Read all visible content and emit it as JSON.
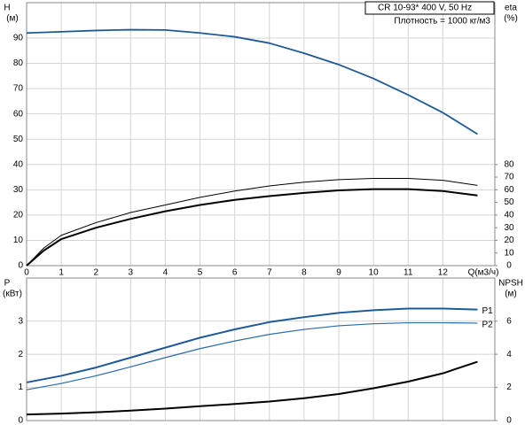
{
  "chart_data": [
    {
      "type": "line",
      "annotations": [
        "CR 10-9",
        "3* 400 V, 50 Hz",
        "Плотность = 1000 кг/м3"
      ],
      "xlabel": "Q(м3/ч)",
      "ylabel": "H",
      "yunit": "(м)",
      "y2label": "eta",
      "y2unit": "(%)",
      "xlim": [
        0,
        13.5
      ],
      "xticks": [
        0,
        1,
        2,
        3,
        4,
        5,
        6,
        7,
        8,
        9,
        10,
        11,
        12
      ],
      "ylim": [
        0,
        104
      ],
      "yticks": [
        0,
        10,
        20,
        30,
        40,
        50,
        60,
        70,
        80,
        90
      ],
      "y2lim": [
        0,
        208
      ],
      "y2ticks": [
        0,
        10,
        20,
        30,
        40,
        50,
        60,
        70,
        80
      ],
      "grid": true,
      "series": [
        {
          "color": "#1f5a96",
          "width": 1.8,
          "x": [
            0,
            1,
            2,
            3,
            4,
            5,
            6,
            7,
            8,
            9,
            10,
            11,
            12,
            13
          ],
          "values": [
            92,
            92.5,
            93,
            93.3,
            93.2,
            92,
            90.5,
            88,
            84,
            79.5,
            74,
            67.5,
            60.5,
            52
          ]
        },
        {
          "color": "#000000",
          "width": 1,
          "axis": "y2",
          "x": [
            0,
            0.5,
            1,
            2,
            3,
            4,
            5,
            6,
            7,
            8,
            9,
            10,
            11,
            12,
            13
          ],
          "values": [
            0,
            14,
            24,
            34,
            42,
            48,
            54,
            59,
            63,
            66,
            68,
            69,
            69,
            67.5,
            63.5
          ]
        },
        {
          "color": "#000000",
          "width": 2,
          "axis": "y2",
          "x": [
            0,
            0.5,
            1,
            2,
            3,
            4,
            5,
            6,
            7,
            8,
            9,
            10,
            11,
            12,
            13
          ],
          "values": [
            0,
            12,
            21,
            30,
            37,
            43,
            48,
            52,
            55,
            57.5,
            59.5,
            60.5,
            60.5,
            59,
            55.5
          ]
        }
      ]
    },
    {
      "type": "line",
      "ylabel": "P",
      "yunit": "(кВт)",
      "y2label": "NPSH",
      "y2unit": "(м)",
      "xlim": [
        0,
        13.5
      ],
      "xticks": [
        0,
        1,
        2,
        3,
        4,
        5,
        6,
        7,
        8,
        9,
        10,
        11,
        12
      ],
      "show_xtick_labels": false,
      "ylim": [
        0,
        4.3
      ],
      "yticks": [
        0,
        1,
        2,
        3
      ],
      "y2lim": [
        0,
        8.6
      ],
      "y2ticks": [
        0,
        2,
        4,
        6
      ],
      "grid": true,
      "series": [
        {
          "name": "P1",
          "color": "#1f5a96",
          "width": 2,
          "x": [
            0,
            1,
            2,
            3,
            4,
            5,
            6,
            7,
            8,
            9,
            10,
            11,
            12,
            13
          ],
          "values": [
            1.15,
            1.35,
            1.6,
            1.9,
            2.2,
            2.5,
            2.75,
            2.97,
            3.12,
            3.25,
            3.33,
            3.38,
            3.38,
            3.35
          ]
        },
        {
          "name": "P2",
          "color": "#2a6aa8",
          "width": 1.2,
          "x": [
            0,
            1,
            2,
            3,
            4,
            5,
            6,
            7,
            8,
            9,
            10,
            11,
            12,
            13
          ],
          "values": [
            0.93,
            1.12,
            1.35,
            1.62,
            1.9,
            2.17,
            2.4,
            2.6,
            2.75,
            2.86,
            2.92,
            2.95,
            2.95,
            2.94
          ]
        },
        {
          "color": "#000000",
          "width": 2,
          "axis": "y2",
          "x": [
            0,
            1,
            2,
            3,
            4,
            5,
            6,
            7,
            8,
            9,
            10,
            11,
            12,
            13
          ],
          "values": [
            0.37,
            0.42,
            0.5,
            0.6,
            0.72,
            0.87,
            1.0,
            1.15,
            1.35,
            1.6,
            1.95,
            2.35,
            2.85,
            3.55
          ]
        }
      ]
    }
  ]
}
